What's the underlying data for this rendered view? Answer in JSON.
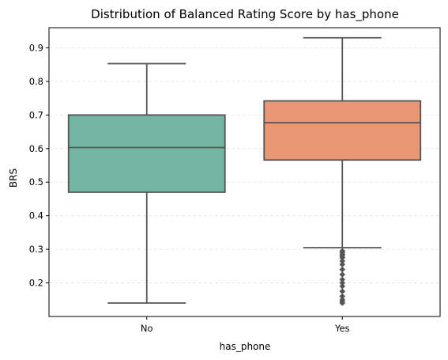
{
  "chart_data": {
    "type": "box",
    "title": "Distribution of Balanced Rating Score by has_phone",
    "xlabel": "has_phone",
    "ylabel": "BRS",
    "categories": [
      "No",
      "Yes"
    ],
    "ylim": [
      0.1,
      0.96
    ],
    "yticks": [
      "0.2",
      "0.3",
      "0.4",
      "0.5",
      "0.6",
      "0.7",
      "0.8",
      "0.9"
    ],
    "grid": "horizontal-dashed",
    "boxes": [
      {
        "category": "No",
        "whisker_low": 0.14,
        "q1": 0.47,
        "median": 0.603,
        "q3": 0.7,
        "whisker_high": 0.853,
        "outliers": [],
        "color": "#72b6a1"
      },
      {
        "category": "Yes",
        "whisker_low": 0.305,
        "q1": 0.566,
        "median": 0.677,
        "q3": 0.742,
        "whisker_high": 0.93,
        "outliers": [
          0.14,
          0.145,
          0.15,
          0.16,
          0.175,
          0.19,
          0.2,
          0.21,
          0.225,
          0.24,
          0.255,
          0.265,
          0.275,
          0.28,
          0.285,
          0.29,
          0.295
        ],
        "color": "#e99675"
      }
    ],
    "line_color": "#555555"
  }
}
